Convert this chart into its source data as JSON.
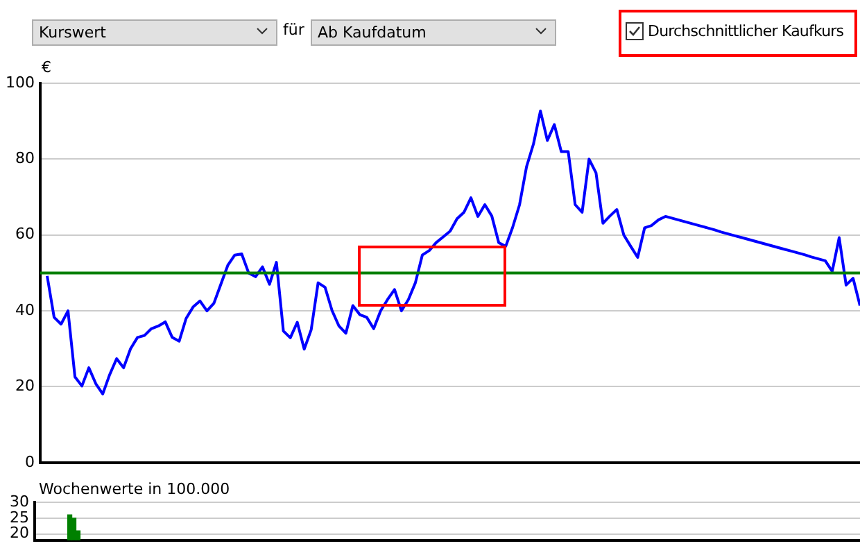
{
  "chart_data": [
    {
      "type": "line",
      "ylabel": "€",
      "annotations": [
        "Kurswert",
        "für",
        "Ab Kaufdatum",
        "Durchschnittlicher Kaufkurs"
      ],
      "categories": [
        null,
        null,
        null,
        null,
        null,
        null,
        null,
        null,
        null,
        null,
        null,
        null,
        null,
        null,
        null,
        null,
        null,
        null,
        null,
        null,
        null,
        null,
        null,
        null,
        null,
        null,
        null,
        null,
        null,
        null,
        null,
        null,
        null,
        null,
        null,
        null,
        null,
        null,
        null,
        null,
        null,
        null,
        null,
        null,
        null,
        null,
        null,
        null,
        null,
        null,
        null,
        null,
        null,
        null,
        null,
        null,
        null,
        null,
        null,
        null,
        null,
        null,
        null,
        null,
        null,
        null,
        null,
        null,
        null,
        null,
        null,
        null,
        null,
        null,
        null,
        null,
        null,
        null,
        null,
        null,
        null,
        null,
        null,
        null,
        null,
        null,
        null,
        null,
        null,
        null,
        null,
        null,
        null,
        null,
        null,
        null,
        null,
        null,
        null,
        null,
        null,
        null,
        null,
        null,
        null,
        null,
        null,
        null,
        null,
        null,
        null,
        null,
        null,
        null,
        null,
        null,
        null,
        null,
        null
      ],
      "series": [
        {
          "color": "#0000ff",
          "values": [
            null,
            49.2,
            38.3,
            36.5,
            40,
            22.6,
            20.2,
            25,
            20.8,
            18.1,
            23.2,
            27.4,
            25,
            30,
            33,
            33.5,
            35.3,
            36,
            37.1,
            33,
            32,
            38,
            41,
            42.6,
            40,
            42,
            47,
            52,
            54.7,
            55,
            50,
            49,
            51.6,
            47,
            52.8,
            34.7,
            32.9,
            37,
            29.9,
            35,
            47.4,
            46.2,
            40.1,
            36,
            34.1,
            41.4,
            39,
            38.3,
            35.3,
            40,
            43,
            45.6,
            40,
            43,
            47.4,
            54.7,
            55.9,
            58,
            59.5,
            61,
            64.3,
            66,
            69.8,
            64.9,
            68,
            65,
            58,
            57,
            62,
            68,
            78,
            84,
            92.7,
            84.9,
            89.1,
            82,
            82,
            68,
            66,
            80,
            76.4,
            63.1,
            65,
            66.7,
            60,
            57,
            54.1,
            61.9,
            62.5,
            64,
            64.9,
            64.4,
            63.9,
            63.4,
            62.9,
            62.4,
            61.9,
            61.4,
            60.8,
            60.3,
            59.8,
            59.3,
            58.8,
            58.3,
            57.8,
            57.3,
            56.8,
            56.3,
            55.8,
            55.3,
            54.8,
            54.2,
            53.7,
            53.2,
            50.4,
            59.3,
            46.8,
            48.6,
            41.4
          ]
        }
      ],
      "ylim": [
        0,
        100
      ],
      "yticks": [
        0,
        20,
        40,
        60,
        80,
        100
      ],
      "grid": "y",
      "marker": "none",
      "legend": false,
      "tick_labels": "y",
      "ref_lines": [
        {
          "axis": "y",
          "value": 50,
          "color": "#008000"
        }
      ]
    },
    {
      "type": "bar",
      "ylabel": "Wochenwerte in 100.000",
      "categories": [
        null,
        null,
        null,
        null,
        null,
        null,
        null,
        null,
        null,
        null,
        null,
        null,
        null,
        null,
        null,
        null,
        null,
        null,
        null,
        null,
        null,
        null,
        null,
        null,
        null,
        null,
        null,
        null,
        null,
        null,
        null,
        null,
        null,
        null,
        null,
        null,
        null,
        null,
        null,
        null,
        null,
        null,
        null,
        null,
        null,
        null,
        null,
        null,
        null,
        null,
        null,
        null,
        null,
        null,
        null,
        null,
        null,
        null,
        null,
        null,
        null,
        null,
        null,
        null,
        null,
        null,
        null,
        null,
        null,
        null,
        null,
        null,
        null,
        null,
        null,
        null,
        null,
        null,
        null,
        null,
        null,
        null,
        null,
        null,
        null,
        null,
        null,
        null,
        null,
        null,
        null,
        null,
        null,
        null,
        null,
        null,
        null,
        null,
        null,
        null,
        null,
        null,
        null,
        null,
        null,
        null,
        null,
        null,
        null,
        null,
        null,
        null,
        null,
        null,
        null,
        null,
        null,
        null,
        null,
        null,
        null,
        null,
        null,
        null,
        null,
        null,
        null,
        null,
        null,
        null,
        null,
        null,
        null,
        null,
        null,
        null,
        null,
        null,
        null,
        null,
        null,
        null,
        null,
        null,
        null,
        null,
        null,
        null,
        null,
        null,
        null,
        null,
        null,
        null,
        null,
        null,
        null,
        null,
        null,
        null,
        null,
        null,
        null,
        null,
        null,
        null,
        null,
        null,
        null,
        null,
        null,
        null,
        null,
        null,
        null,
        null,
        null,
        null,
        null,
        null,
        null,
        null,
        null,
        null,
        null,
        null,
        null,
        null,
        null,
        null,
        null,
        null,
        null,
        null,
        null,
        null,
        null,
        null,
        null,
        null
      ],
      "series": [
        {
          "color": "#008000",
          "values": [
            null,
            null,
            null,
            null,
            null,
            null,
            null,
            null,
            26,
            25,
            21,
            null,
            null,
            null,
            null,
            null,
            null,
            null,
            null,
            null,
            null,
            null,
            null,
            null,
            null,
            null,
            null,
            null,
            null,
            null,
            null,
            null,
            null,
            null,
            null,
            null,
            null,
            null,
            null,
            null,
            null,
            null,
            null,
            null,
            null,
            null,
            null,
            null,
            null,
            null,
            null,
            null,
            null,
            null,
            null,
            null,
            null,
            null,
            null,
            null,
            null,
            null,
            null,
            null,
            null,
            null,
            null,
            null,
            null,
            null,
            null,
            null,
            null,
            null,
            null,
            null,
            null,
            null,
            null,
            null,
            null,
            null,
            null,
            null,
            null,
            null,
            null,
            null,
            null,
            null,
            null,
            null,
            null,
            null,
            null,
            null,
            null,
            null,
            null,
            null,
            null,
            null,
            null,
            null,
            null,
            null,
            null,
            null,
            null,
            null,
            null,
            null,
            null,
            null,
            null,
            null,
            null,
            null,
            null,
            null,
            null,
            null,
            null,
            null,
            null,
            null,
            null,
            null,
            null,
            null,
            null,
            null,
            null,
            null,
            null,
            null,
            null,
            null,
            null,
            null,
            null,
            null,
            null,
            null,
            null,
            null,
            null,
            null,
            null,
            null,
            null,
            null,
            null,
            null,
            null,
            null,
            null,
            null,
            null,
            null,
            null,
            null,
            null,
            null,
            null,
            null,
            null,
            null,
            null,
            null,
            null,
            null,
            null,
            null,
            null,
            null,
            null,
            null,
            null,
            null,
            null,
            null,
            null,
            null,
            null,
            null,
            null,
            null,
            null,
            null,
            null,
            null,
            null,
            null,
            null,
            null,
            null,
            null,
            null,
            null
          ]
        }
      ],
      "ylim": [
        18,
        30
      ],
      "yticks": [
        20,
        25,
        30
      ],
      "grid": "y",
      "legend": false,
      "tick_labels": "y"
    }
  ]
}
